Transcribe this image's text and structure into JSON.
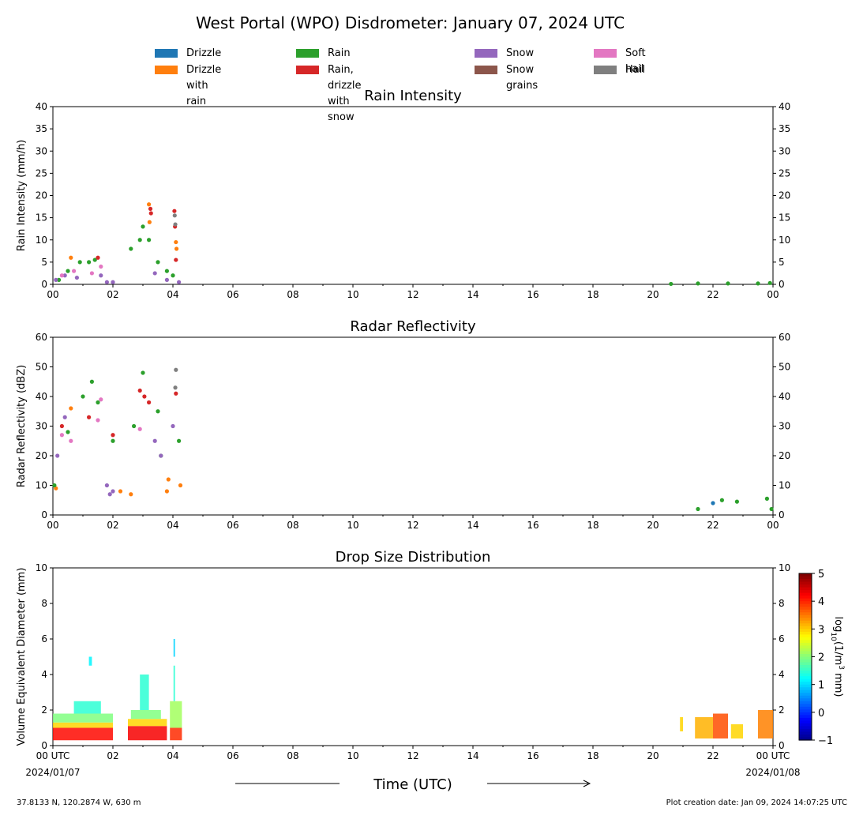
{
  "title": "West Portal (WPO) Disdrometer: January 07, 2024 UTC",
  "legend": [
    {
      "label": "Drizzle",
      "color": "#1f77b4"
    },
    {
      "label": "Drizzle with rain",
      "color": "#ff7f0e"
    },
    {
      "label": "Rain",
      "color": "#2ca02c"
    },
    {
      "label": "Rain, drizzle with snow",
      "color": "#d62728"
    },
    {
      "label": "Snow",
      "color": "#9467bd"
    },
    {
      "label": "Snow grains",
      "color": "#8c564b"
    },
    {
      "label": "Soft hail",
      "color": "#e377c2"
    },
    {
      "label": "Hail",
      "color": "#7f7f7f"
    }
  ],
  "footer": {
    "location": "37.8133 N, 120.2874 W, 630 m",
    "created": "Plot creation date: Jan 09, 2024 14:07:25 UTC"
  },
  "xaxis": {
    "label": "Time (UTC)",
    "range": [
      0,
      24
    ],
    "tick_labels": [
      "00",
      "02",
      "04",
      "06",
      "08",
      "10",
      "12",
      "14",
      "16",
      "18",
      "20",
      "22",
      "00"
    ],
    "first_tick_label_bottom": [
      "00 UTC",
      "2024/01/07"
    ],
    "last_tick_label_bottom": [
      "00 UTC",
      "2024/01/08"
    ]
  },
  "chart_data": [
    {
      "type": "scatter",
      "title": "Rain Intensity",
      "ylabel": "Rain Intensity (mm/h)",
      "ylim": [
        0,
        40
      ],
      "yticks": [
        0,
        5,
        10,
        15,
        20,
        25,
        30,
        35,
        40
      ],
      "x_unit": "hours UTC",
      "series": [
        {
          "name": "Drizzle with rain",
          "x": [
            0.6,
            3.2,
            3.22,
            4.1,
            4.12
          ],
          "y": [
            6,
            18,
            14,
            9.5,
            8
          ]
        },
        {
          "name": "Rain",
          "x": [
            0.2,
            0.5,
            0.9,
            1.2,
            1.4,
            2.6,
            2.9,
            3.0,
            3.2,
            3.5,
            3.8,
            4.0,
            20.6,
            21.5,
            22.5,
            23.5,
            23.9
          ],
          "y": [
            1,
            3,
            5,
            5,
            5.5,
            8,
            10,
            13,
            10,
            5,
            3,
            2,
            0.1,
            0.2,
            0.2,
            0.2,
            0.3
          ]
        },
        {
          "name": "Rain, drizzle with snow",
          "x": [
            1.5,
            3.25,
            3.27,
            4.05,
            4.07,
            4.1
          ],
          "y": [
            6,
            17,
            16,
            16.5,
            13,
            5.5
          ]
        },
        {
          "name": "Snow",
          "x": [
            0.1,
            0.4,
            0.8,
            1.6,
            1.8,
            2.0,
            3.4,
            3.8,
            4.2
          ],
          "y": [
            1,
            2,
            1.5,
            2,
            0.5,
            0.5,
            2.5,
            1,
            0.5
          ]
        },
        {
          "name": "Soft hail",
          "x": [
            0.3,
            0.7,
            1.3,
            1.6
          ],
          "y": [
            2,
            3,
            2.5,
            4
          ]
        },
        {
          "name": "Hail",
          "x": [
            4.06,
            4.08
          ],
          "y": [
            15.5,
            13.5
          ]
        }
      ]
    },
    {
      "type": "scatter",
      "title": "Radar Reflectivity",
      "ylabel": "Radar Reflectivity (dBZ)",
      "ylim": [
        0,
        60
      ],
      "yticks": [
        0,
        10,
        20,
        30,
        40,
        50,
        60
      ],
      "x_unit": "hours UTC",
      "series": [
        {
          "name": "Drizzle",
          "x": [
            22.0
          ],
          "y": [
            4
          ]
        },
        {
          "name": "Drizzle with rain",
          "x": [
            0.1,
            0.6,
            2.25,
            2.6,
            3.8,
            3.85,
            4.25
          ],
          "y": [
            9,
            36,
            8,
            7,
            8,
            12,
            10
          ]
        },
        {
          "name": "Rain",
          "x": [
            0.05,
            0.5,
            1.0,
            1.3,
            1.5,
            2.0,
            2.7,
            3.0,
            3.5,
            3.6,
            4.2,
            21.5,
            22.3,
            22.8,
            23.8,
            23.95
          ],
          "y": [
            10,
            28,
            40,
            45,
            38,
            25,
            30,
            48,
            35,
            20,
            25,
            2,
            5,
            4.5,
            5.5,
            2
          ]
        },
        {
          "name": "Rain, drizzle with snow",
          "x": [
            0.3,
            1.2,
            2.0,
            2.9,
            3.05,
            3.2,
            4.1
          ],
          "y": [
            30,
            33,
            27,
            42,
            40,
            38,
            41
          ]
        },
        {
          "name": "Snow",
          "x": [
            0.15,
            0.4,
            1.8,
            1.9,
            2.0,
            3.4,
            3.6,
            4.0
          ],
          "y": [
            20,
            33,
            10,
            7,
            8,
            25,
            20,
            30
          ]
        },
        {
          "name": "Soft hail",
          "x": [
            0.3,
            0.6,
            1.5,
            1.6,
            2.9
          ],
          "y": [
            27,
            25,
            32,
            39,
            29
          ]
        },
        {
          "name": "Hail",
          "x": [
            4.1,
            4.08
          ],
          "y": [
            49,
            43
          ]
        }
      ]
    },
    {
      "type": "heatmap",
      "title": "Drop Size Distribution",
      "ylabel": "Volume Equivalent Diameter (mm)",
      "ylim": [
        0,
        10
      ],
      "yticks": [
        0,
        2,
        4,
        6,
        8,
        10
      ],
      "x_unit": "hours UTC",
      "colorbar": {
        "label": "log10(1/m3 mm)",
        "range": [
          -1,
          5
        ],
        "ticks": [
          -1,
          0,
          1,
          2,
          3,
          4,
          5
        ]
      },
      "blocks": [
        {
          "x0": 0.0,
          "x1": 2.0,
          "y0": 0.3,
          "y1": 1.0,
          "value": 4.2
        },
        {
          "x0": 0.0,
          "x1": 2.0,
          "y0": 1.0,
          "y1": 1.3,
          "value": 3.0
        },
        {
          "x0": 0.0,
          "x1": 2.0,
          "y0": 1.3,
          "y1": 1.8,
          "value": 2.0
        },
        {
          "x0": 0.7,
          "x1": 1.6,
          "y0": 1.8,
          "y1": 2.5,
          "value": 1.5
        },
        {
          "x0": 1.2,
          "x1": 1.3,
          "y0": 4.5,
          "y1": 5.0,
          "value": 1.2
        },
        {
          "x0": 2.5,
          "x1": 3.8,
          "y0": 0.3,
          "y1": 1.1,
          "value": 4.3
        },
        {
          "x0": 2.5,
          "x1": 3.8,
          "y0": 1.1,
          "y1": 1.5,
          "value": 3.0
        },
        {
          "x0": 2.6,
          "x1": 3.6,
          "y0": 1.5,
          "y1": 2.0,
          "value": 2.0
        },
        {
          "x0": 2.9,
          "x1": 3.2,
          "y0": 2.0,
          "y1": 4.0,
          "value": 1.5
        },
        {
          "x0": 3.9,
          "x1": 4.3,
          "y0": 0.3,
          "y1": 1.0,
          "value": 4.0
        },
        {
          "x0": 3.9,
          "x1": 4.3,
          "y0": 1.0,
          "y1": 2.5,
          "value": 2.2
        },
        {
          "x0": 4.02,
          "x1": 4.07,
          "y0": 2.5,
          "y1": 4.5,
          "value": 1.5
        },
        {
          "x0": 4.02,
          "x1": 4.07,
          "y0": 5.0,
          "y1": 6.0,
          "value": 1.0
        },
        {
          "x0": 20.9,
          "x1": 21.0,
          "y0": 0.8,
          "y1": 1.6,
          "value": 3.0
        },
        {
          "x0": 21.4,
          "x1": 22.0,
          "y0": 0.4,
          "y1": 1.6,
          "value": 3.2
        },
        {
          "x0": 22.0,
          "x1": 22.5,
          "y0": 0.4,
          "y1": 1.8,
          "value": 3.8
        },
        {
          "x0": 22.6,
          "x1": 23.0,
          "y0": 0.4,
          "y1": 1.2,
          "value": 3.0
        },
        {
          "x0": 23.5,
          "x1": 24.0,
          "y0": 0.4,
          "y1": 2.0,
          "value": 3.5
        }
      ]
    }
  ]
}
